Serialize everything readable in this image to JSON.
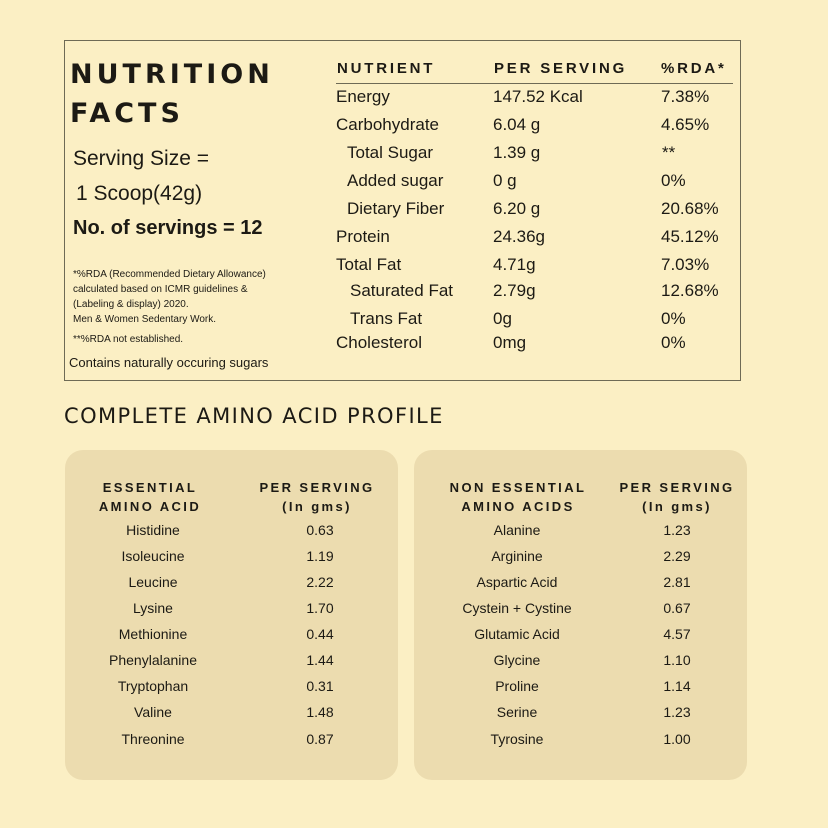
{
  "nutrition": {
    "title_line1": "NUTRITION",
    "title_line2": "FACTS",
    "serving_size_label": "Serving Size =",
    "serving_size_value": "1 Scoop(42g)",
    "servings": "No. of servings = 12",
    "notes": [
      "*%RDA (Recommended Dietary Allowance)",
      "calculated based on ICMR guidelines &",
      "(Labeling & display) 2020.",
      "Men & Women Sedentary Work.",
      "**%RDA not established."
    ],
    "contains": "Contains naturally occuring sugars",
    "headers": {
      "nutrient": "NUTRIENT",
      "per_serving": "PER SERVING",
      "rda": "%RDA*"
    },
    "rows": [
      {
        "name": "Energy",
        "value": "147.52 Kcal",
        "rda": "7.38%"
      },
      {
        "name": "Carbohydrate",
        "value": "6.04 g",
        "rda": "4.65%"
      },
      {
        "name": "Total Sugar",
        "value": "1.39 g",
        "rda": "**"
      },
      {
        "name": "Added sugar",
        "value": "0 g",
        "rda": "0%"
      },
      {
        "name": "Dietary Fiber",
        "value": "6.20 g",
        "rda": "20.68%"
      },
      {
        "name": "Protein",
        "value": "24.36g",
        "rda": "45.12%"
      },
      {
        "name": "Total Fat",
        "value": "4.71g",
        "rda": "7.03%"
      },
      {
        "name": "Saturated Fat",
        "value": "2.79g",
        "rda": "12.68%"
      },
      {
        "name": "Trans Fat",
        "value": "0g",
        "rda": "0%"
      },
      {
        "name": "Cholesterol",
        "value": "0mg",
        "rda": "0%"
      }
    ]
  },
  "amino": {
    "section_title": "COMPLETE AMINO ACID PROFILE",
    "essential": {
      "header_line1": "ESSENTIAL",
      "header_line2": "AMINO ACID",
      "value_header_line1": "PER SERVING",
      "value_header_line2": "(In gms)",
      "rows": [
        {
          "name": "Histidine",
          "value": "0.63"
        },
        {
          "name": "Isoleucine",
          "value": "1.19"
        },
        {
          "name": "Leucine",
          "value": "2.22"
        },
        {
          "name": "Lysine",
          "value": "1.70"
        },
        {
          "name": "Methionine",
          "value": "0.44"
        },
        {
          "name": "Phenylalanine",
          "value": "1.44"
        },
        {
          "name": "Tryptophan",
          "value": "0.31"
        },
        {
          "name": "Valine",
          "value": "1.48"
        },
        {
          "name": "Threonine",
          "value": "0.87"
        }
      ]
    },
    "non_essential": {
      "header_line1": "NON ESSENTIAL",
      "header_line2": "AMINO ACIDS",
      "value_header_line1": "PER SERVING",
      "value_header_line2": "(In gms)",
      "rows": [
        {
          "name": "Alanine",
          "value": "1.23"
        },
        {
          "name": "Arginine",
          "value": "2.29"
        },
        {
          "name": "Aspartic Acid",
          "value": "2.81"
        },
        {
          "name": "Cystein + Cystine",
          "value": "0.67"
        },
        {
          "name": "Glutamic Acid",
          "value": "4.57"
        },
        {
          "name": "Glycine",
          "value": "1.10"
        },
        {
          "name": "Proline",
          "value": "1.14"
        },
        {
          "name": "Serine",
          "value": "1.23"
        },
        {
          "name": "Tyrosine",
          "value": "1.00"
        }
      ]
    }
  }
}
